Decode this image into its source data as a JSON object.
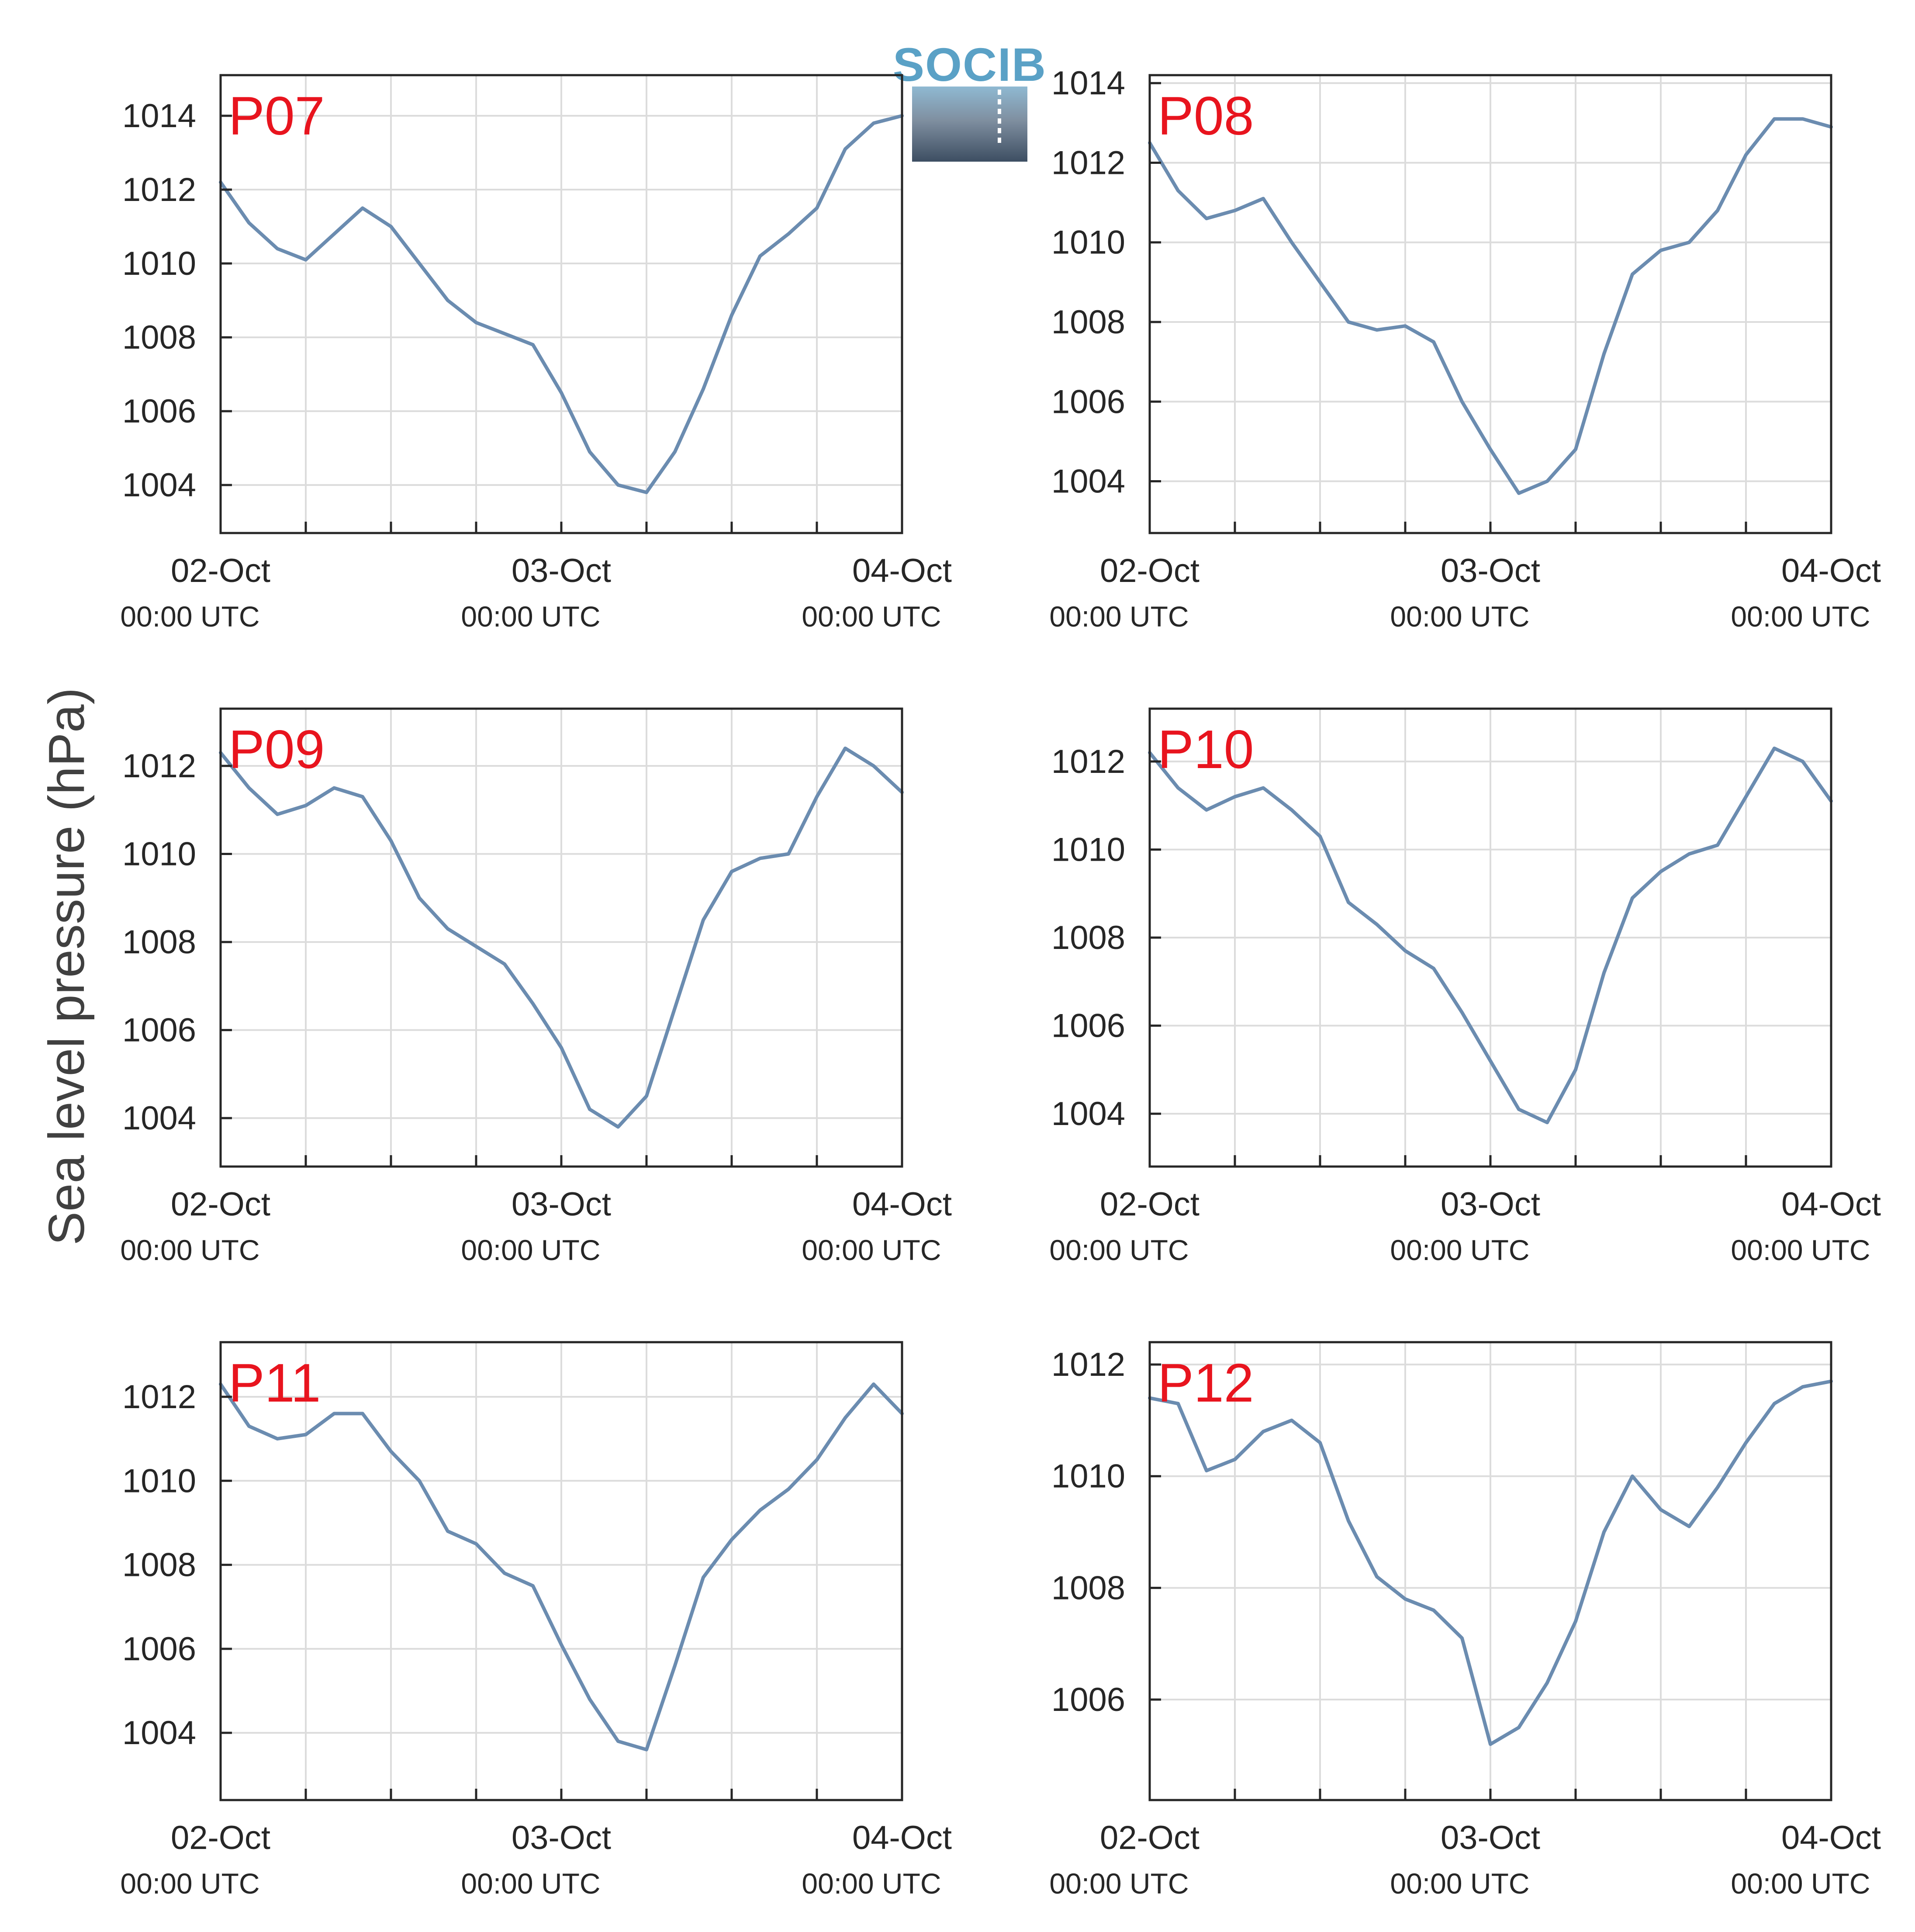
{
  "figure": {
    "y_axis_title": "Sea level pressure (hPa)",
    "logo_text": "SOCIB",
    "line_color": "#6b8cb0",
    "label_color": "#e8141e",
    "grid_color": "#dcdcdc"
  },
  "chart_data": [
    {
      "type": "line",
      "label": "P07",
      "ylim": [
        1002.7,
        1015.1
      ],
      "yticks": [
        1004,
        1006,
        1008,
        1010,
        1012,
        1014
      ],
      "x_ticks": [
        [
          "02-Oct",
          "00:00 UTC"
        ],
        [
          "03-Oct",
          "00:00 UTC"
        ],
        [
          "04-Oct",
          "00:00 UTC"
        ]
      ],
      "x": [
        0,
        2,
        4,
        6,
        8,
        10,
        12,
        14,
        16,
        18,
        20,
        22,
        24,
        26,
        28,
        30,
        32,
        34,
        36,
        38,
        40,
        42,
        44,
        46,
        48
      ],
      "y": [
        1012.2,
        1011.1,
        1010.4,
        1010.1,
        1010.8,
        1011.5,
        1011.0,
        1010.0,
        1009.0,
        1008.4,
        1008.1,
        1007.8,
        1006.5,
        1004.9,
        1004.0,
        1003.8,
        1004.9,
        1006.6,
        1008.6,
        1010.2,
        1010.8,
        1011.5,
        1013.1,
        1013.8,
        1014.0
      ]
    },
    {
      "type": "line",
      "label": "P08",
      "ylim": [
        1002.7,
        1014.2
      ],
      "yticks": [
        1004,
        1006,
        1008,
        1010,
        1012,
        1014
      ],
      "x_ticks": [
        [
          "02-Oct",
          "00:00 UTC"
        ],
        [
          "03-Oct",
          "00:00 UTC"
        ],
        [
          "04-Oct",
          "00:00 UTC"
        ]
      ],
      "x": [
        0,
        2,
        4,
        6,
        8,
        10,
        12,
        14,
        16,
        18,
        20,
        22,
        24,
        26,
        28,
        30,
        32,
        34,
        36,
        38,
        40,
        42,
        44,
        46,
        48
      ],
      "y": [
        1012.5,
        1011.3,
        1010.6,
        1010.8,
        1011.1,
        1010.0,
        1009.0,
        1008.0,
        1007.8,
        1007.9,
        1007.5,
        1006.0,
        1004.8,
        1003.7,
        1004.0,
        1004.8,
        1007.2,
        1009.2,
        1009.8,
        1010.0,
        1010.8,
        1012.2,
        1013.1,
        1013.1,
        1012.9
      ]
    },
    {
      "type": "line",
      "label": "P09",
      "ylim": [
        1002.9,
        1013.3
      ],
      "yticks": [
        1004,
        1006,
        1008,
        1010,
        1012
      ],
      "x_ticks": [
        [
          "02-Oct",
          "00:00 UTC"
        ],
        [
          "03-Oct",
          "00:00 UTC"
        ],
        [
          "04-Oct",
          "00:00 UTC"
        ]
      ],
      "x": [
        0,
        2,
        4,
        6,
        8,
        10,
        12,
        14,
        16,
        18,
        20,
        22,
        24,
        26,
        28,
        30,
        32,
        34,
        36,
        38,
        40,
        42,
        44,
        46,
        48
      ],
      "y": [
        1012.3,
        1011.5,
        1010.9,
        1011.1,
        1011.5,
        1011.3,
        1010.3,
        1009.0,
        1008.3,
        1007.9,
        1007.5,
        1006.6,
        1005.6,
        1004.2,
        1003.8,
        1004.5,
        1006.5,
        1008.5,
        1009.6,
        1009.9,
        1010.0,
        1011.3,
        1012.4,
        1012.0,
        1011.4
      ]
    },
    {
      "type": "line",
      "label": "P10",
      "ylim": [
        1002.8,
        1013.2
      ],
      "yticks": [
        1004,
        1006,
        1008,
        1010,
        1012
      ],
      "x_ticks": [
        [
          "02-Oct",
          "00:00 UTC"
        ],
        [
          "03-Oct",
          "00:00 UTC"
        ],
        [
          "04-Oct",
          "00:00 UTC"
        ]
      ],
      "x": [
        0,
        2,
        4,
        6,
        8,
        10,
        12,
        14,
        16,
        18,
        20,
        22,
        24,
        26,
        28,
        30,
        32,
        34,
        36,
        38,
        40,
        42,
        44,
        46,
        48
      ],
      "y": [
        1012.2,
        1011.4,
        1010.9,
        1011.2,
        1011.4,
        1010.9,
        1010.3,
        1008.8,
        1008.3,
        1007.7,
        1007.3,
        1006.3,
        1005.2,
        1004.1,
        1003.8,
        1005.0,
        1007.2,
        1008.9,
        1009.5,
        1009.9,
        1010.1,
        1011.2,
        1012.3,
        1012.0,
        1011.1
      ]
    },
    {
      "type": "line",
      "label": "P11",
      "ylim": [
        1002.4,
        1013.3
      ],
      "yticks": [
        1004,
        1006,
        1008,
        1010,
        1012
      ],
      "x_ticks": [
        [
          "02-Oct",
          "00:00 UTC"
        ],
        [
          "03-Oct",
          "00:00 UTC"
        ],
        [
          "04-Oct",
          "00:00 UTC"
        ]
      ],
      "x": [
        0,
        2,
        4,
        6,
        8,
        10,
        12,
        14,
        16,
        18,
        20,
        22,
        24,
        26,
        28,
        30,
        32,
        34,
        36,
        38,
        40,
        42,
        44,
        46,
        48
      ],
      "y": [
        1012.3,
        1011.3,
        1011.0,
        1011.1,
        1011.6,
        1011.6,
        1010.7,
        1010.0,
        1008.8,
        1008.5,
        1007.8,
        1007.5,
        1006.1,
        1004.8,
        1003.8,
        1003.6,
        1005.6,
        1007.7,
        1008.6,
        1009.3,
        1009.8,
        1010.5,
        1011.5,
        1012.3,
        1011.6
      ]
    },
    {
      "type": "line",
      "label": "P12",
      "ylim": [
        1004.2,
        1012.4
      ],
      "yticks": [
        1006,
        1008,
        1010,
        1012
      ],
      "x_ticks": [
        [
          "02-Oct",
          "00:00 UTC"
        ],
        [
          "03-Oct",
          "00:00 UTC"
        ],
        [
          "04-Oct",
          "00:00 UTC"
        ]
      ],
      "x": [
        0,
        2,
        4,
        6,
        8,
        10,
        12,
        14,
        16,
        18,
        20,
        22,
        24,
        26,
        28,
        30,
        32,
        34,
        36,
        38,
        40,
        42,
        44,
        46,
        48
      ],
      "y": [
        1011.4,
        1011.3,
        1010.1,
        1010.3,
        1010.8,
        1011.0,
        1010.6,
        1009.2,
        1008.2,
        1007.8,
        1007.6,
        1007.1,
        1005.2,
        1005.5,
        1006.3,
        1007.4,
        1009.0,
        1010.0,
        1009.4,
        1009.1,
        1009.8,
        1010.6,
        1011.3,
        1011.6,
        1011.7
      ]
    }
  ]
}
